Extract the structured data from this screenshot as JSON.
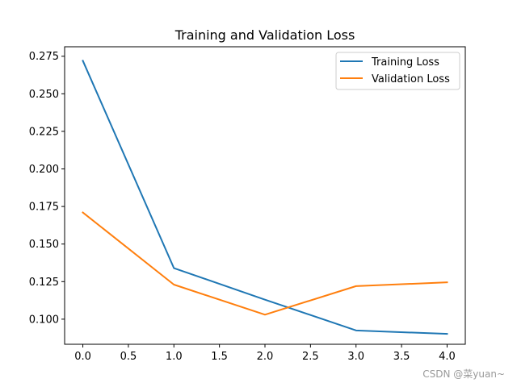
{
  "chart_data": {
    "type": "line",
    "title": "Training and Validation Loss",
    "xlabel": "",
    "ylabel": "",
    "x": [
      0,
      1,
      2,
      3,
      4
    ],
    "series": [
      {
        "name": "Training Loss",
        "color": "#1f77b4",
        "values": [
          0.272,
          0.134,
          0.113,
          0.0925,
          0.0902
        ]
      },
      {
        "name": "Validation Loss",
        "color": "#ff7f0e",
        "values": [
          0.171,
          0.123,
          0.103,
          0.122,
          0.1245
        ]
      }
    ],
    "xlim": [
      -0.2,
      4.2
    ],
    "ylim": [
      0.0833,
      0.2813
    ],
    "xticks": [
      0,
      0.5,
      1,
      1.5,
      2,
      2.5,
      3,
      3.5,
      4
    ],
    "xtick_labels": [
      "0.0",
      "0.5",
      "1.0",
      "1.5",
      "2.0",
      "2.5",
      "3.0",
      "3.5",
      "4.0"
    ],
    "yticks": [
      0.1,
      0.125,
      0.15,
      0.175,
      0.2,
      0.225,
      0.25,
      0.275
    ],
    "ytick_labels": [
      "0.100",
      "0.125",
      "0.150",
      "0.175",
      "0.200",
      "0.225",
      "0.250",
      "0.275"
    ],
    "grid": false,
    "legend_position": "top-right"
  },
  "watermark": "CSDN @菜yuan~"
}
